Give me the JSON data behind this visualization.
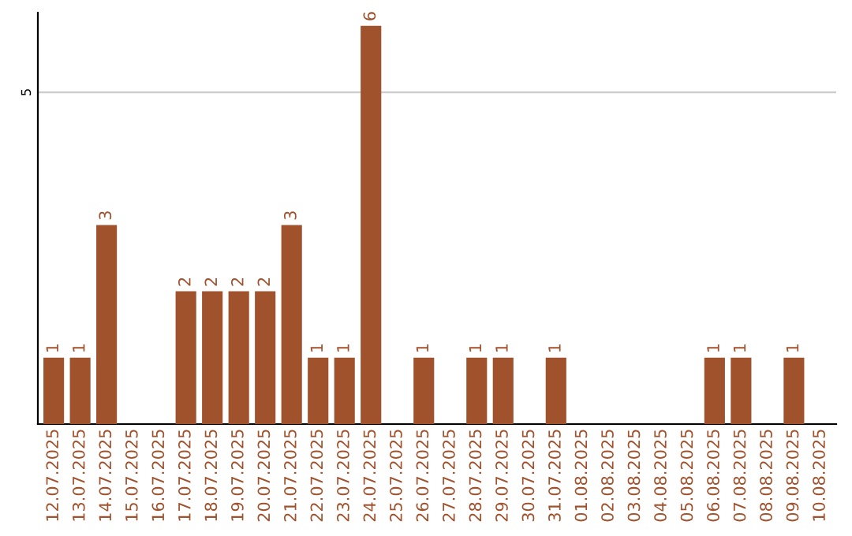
{
  "chart_data": {
    "type": "bar",
    "categories": [
      "12.07.2025",
      "13.07.2025",
      "14.07.2025",
      "15.07.2025",
      "16.07.2025",
      "17.07.2025",
      "18.07.2025",
      "19.07.2025",
      "20.07.2025",
      "21.07.2025",
      "22.07.2025",
      "23.07.2025",
      "24.07.2025",
      "25.07.2025",
      "26.07.2025",
      "27.07.2025",
      "28.07.2025",
      "29.07.2025",
      "30.07.2025",
      "31.07.2025",
      "01.08.2025",
      "02.08.2025",
      "03.08.2025",
      "04.08.2025",
      "05.08.2025",
      "06.08.2025",
      "07.08.2025",
      "08.08.2025",
      "09.08.2025",
      "10.08.2025"
    ],
    "values": [
      1,
      1,
      3,
      0,
      0,
      2,
      2,
      2,
      2,
      3,
      1,
      1,
      6,
      0,
      1,
      0,
      1,
      1,
      0,
      1,
      0,
      0,
      0,
      0,
      0,
      1,
      1,
      0,
      1,
      0
    ],
    "value_labels": [
      "1",
      "1",
      "3",
      null,
      null,
      "2",
      "2",
      "2",
      "2",
      "3",
      "1",
      "1",
      "6",
      null,
      "1",
      null,
      "1",
      "1",
      null,
      "1",
      null,
      null,
      null,
      null,
      null,
      "1",
      "1",
      null,
      "1",
      null
    ],
    "color": "#a0522d",
    "ylim": [
      0,
      6.2
    ],
    "yticks": [
      5
    ],
    "grid": "y"
  }
}
